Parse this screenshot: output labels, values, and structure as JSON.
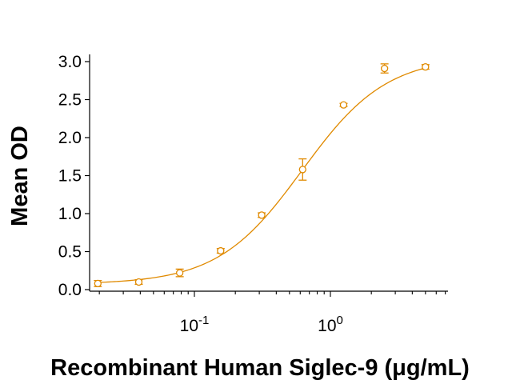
{
  "chart_data": {
    "type": "scatter",
    "xlabel": "Recombinant Human Siglec-9 (μg/mL)",
    "ylabel": "Mean OD",
    "xscale": "log",
    "xlim": [
      0.0145,
      7.0
    ],
    "ylim": [
      0.0,
      3.0
    ],
    "grid": false,
    "x_ticks": [
      {
        "value": 0.1,
        "base": "10",
        "exp": "-1"
      },
      {
        "value": 1,
        "base": "10",
        "exp": "0"
      }
    ],
    "y_ticks": [
      "0.0",
      "0.5",
      "1.0",
      "1.5",
      "2.0",
      "2.5",
      "3.0"
    ],
    "y_tick_values": [
      0.0,
      0.5,
      1.0,
      1.5,
      2.0,
      2.5,
      3.0
    ],
    "series": [
      {
        "color": "#E08A00",
        "marker": "open-circle",
        "points": [
          {
            "x": 0.0195,
            "y": 0.08,
            "err": 0.04
          },
          {
            "x": 0.039,
            "y": 0.1,
            "err": 0.03
          },
          {
            "x": 0.078,
            "y": 0.22,
            "err": 0.05
          },
          {
            "x": 0.156,
            "y": 0.51,
            "err": 0.03
          },
          {
            "x": 0.3125,
            "y": 0.98,
            "err": 0.03
          },
          {
            "x": 0.625,
            "y": 1.58,
            "err": 0.14
          },
          {
            "x": 1.25,
            "y": 2.43,
            "err": 0.02
          },
          {
            "x": 2.5,
            "y": 2.91,
            "err": 0.06
          },
          {
            "x": 5.0,
            "y": 2.93,
            "err": 0.03
          }
        ],
        "fit_curve": {
          "model": "4PL",
          "bottom": 0.07,
          "top": 3.07,
          "ec50": 0.62,
          "hill": 1.4
        }
      }
    ]
  }
}
